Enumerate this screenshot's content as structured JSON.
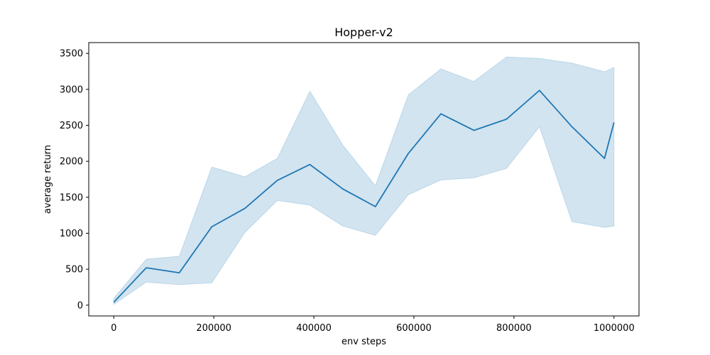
{
  "chart_data": {
    "type": "line",
    "title": "Hopper-v2",
    "xlabel": "env steps",
    "ylabel": "average return",
    "xlim": [
      -50000,
      1050000
    ],
    "ylim": [
      -150,
      3650
    ],
    "xticks": [
      0,
      200000,
      400000,
      600000,
      800000,
      1000000
    ],
    "xtick_labels": [
      "0",
      "200000",
      "400000",
      "600000",
      "800000",
      "1000000"
    ],
    "yticks": [
      0,
      500,
      1000,
      1500,
      2000,
      2500,
      3000,
      3500
    ],
    "ytick_labels": [
      "0",
      "500",
      "1000",
      "1500",
      "2000",
      "2500",
      "3000",
      "3500"
    ],
    "grid": false,
    "legend": "none",
    "colors": {
      "line": "#1f77b4",
      "band": "#1f77b4"
    },
    "series": [
      {
        "x": [
          0,
          65000,
          131000,
          196000,
          262000,
          327000,
          392000,
          458000,
          523000,
          589000,
          654000,
          720000,
          785000,
          851000,
          916000,
          981000,
          1000000
        ],
        "y": [
          40,
          520,
          450,
          1090,
          1345,
          1735,
          1955,
          1615,
          1370,
          2110,
          2660,
          2430,
          2585,
          2985,
          2480,
          2040,
          2540
        ],
        "lower": [
          10,
          320,
          285,
          310,
          1010,
          1455,
          1390,
          1100,
          970,
          1535,
          1740,
          1770,
          1900,
          2480,
          1160,
          1080,
          1100
        ],
        "upper": [
          95,
          640,
          680,
          1920,
          1785,
          2040,
          2975,
          2225,
          1660,
          2925,
          3285,
          3110,
          3450,
          3430,
          3365,
          3245,
          3305
        ]
      }
    ]
  }
}
